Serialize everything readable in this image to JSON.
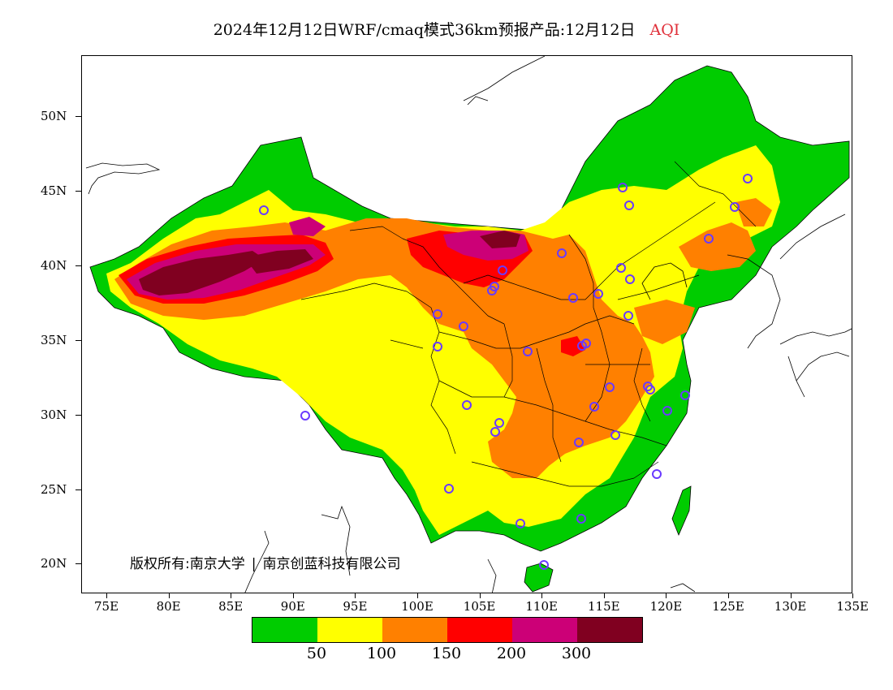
{
  "title": {
    "main": "2024年12月12日WRF/cmaq模式36km预报产品:12月12日",
    "variable": "AQI",
    "variable_color": "#e0303a"
  },
  "axes": {
    "y_ticks": [
      "50N",
      "45N",
      "40N",
      "35N",
      "30N",
      "25N",
      "20N"
    ],
    "x_ticks": [
      "75E",
      "80E",
      "85E",
      "90E",
      "95E",
      "100E",
      "105E",
      "110E",
      "115E",
      "120E",
      "125E",
      "130E",
      "135E"
    ]
  },
  "copyright": {
    "prefix": "版权所有:",
    "owner_1": "南京大学",
    "owner_2": "南京创蓝科技有限公司"
  },
  "legend": {
    "colors": [
      "#00cc00",
      "#ffff00",
      "#ff8000",
      "#ff0000",
      "#cc0077",
      "#800020"
    ],
    "labels": [
      "50",
      "100",
      "150",
      "200",
      "300"
    ]
  },
  "colors": {
    "good": "#00cc00",
    "moderate": "#ffff00",
    "sensitive": "#ff8000",
    "unhealthy": "#ff0000",
    "very_unhealthy": "#cc0077",
    "hazardous": "#800020",
    "station_marker": "#6a3aff"
  }
}
